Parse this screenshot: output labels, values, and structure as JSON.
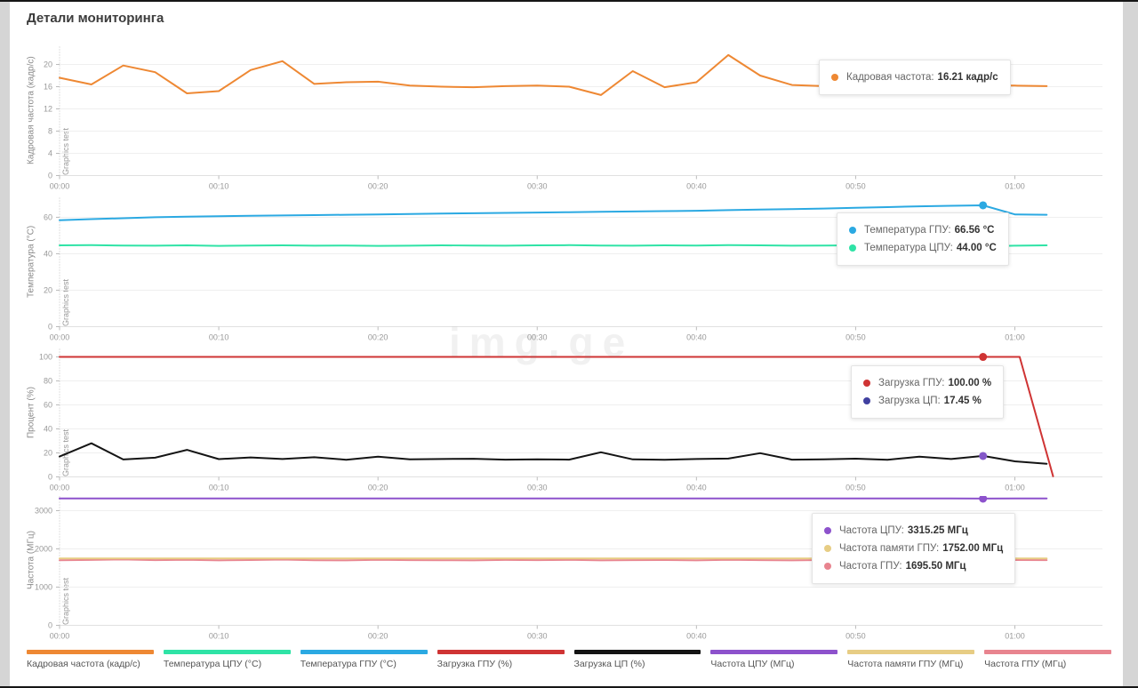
{
  "title": "Детали мониторинга",
  "session_label": "Graphics test",
  "watermark": "img.ge",
  "time_axis": {
    "labels": [
      "00:00",
      "00:10",
      "00:20",
      "00:30",
      "00:40",
      "00:50",
      "01:00"
    ],
    "minutes": [
      0,
      10,
      20,
      30,
      40,
      50,
      60
    ],
    "xmax_min": 65.5
  },
  "chart_data": [
    {
      "type": "line",
      "ylabel": "Кадровая частота (кадр/с)",
      "ylim": [
        0,
        23.2
      ],
      "yticks": [
        0,
        4,
        8,
        12,
        16,
        20
      ],
      "x": [
        0,
        2,
        4,
        6,
        8,
        10,
        12,
        14,
        16,
        18,
        20,
        22,
        24,
        26,
        28,
        30,
        32,
        34,
        36,
        38,
        40,
        42,
        44,
        46,
        48,
        50,
        52,
        54,
        56,
        58,
        60,
        62
      ],
      "series": [
        {
          "name": "Кадровая частота (кадр/с)",
          "color": "#ee8833",
          "marker": 29,
          "values": [
            17.6,
            16.4,
            19.8,
            18.6,
            14.8,
            15.2,
            19.0,
            20.6,
            16.5,
            16.8,
            16.9,
            16.2,
            16.0,
            15.9,
            16.1,
            16.2,
            16.0,
            14.5,
            18.8,
            15.9,
            16.8,
            21.7,
            18.0,
            16.3,
            16.1,
            15.5,
            15.9,
            15.4,
            16.0,
            16.21,
            16.2,
            16.1
          ]
        }
      ],
      "tooltip": {
        "rows": [
          {
            "color": "#ee8833",
            "label": "Кадровая частота:",
            "value": "16.21 кадр/с"
          }
        ]
      }
    },
    {
      "type": "line",
      "ylabel": "Температура (°C)",
      "ylim": [
        0,
        70.7
      ],
      "yticks": [
        0,
        20,
        40,
        60
      ],
      "x": [
        0,
        2,
        4,
        6,
        8,
        10,
        12,
        14,
        16,
        18,
        20,
        22,
        24,
        26,
        28,
        30,
        32,
        34,
        36,
        38,
        40,
        42,
        44,
        46,
        48,
        50,
        52,
        54,
        56,
        58,
        60,
        62
      ],
      "series": [
        {
          "name": "Температура ГПУ (°C)",
          "color": "#2ba9e2",
          "marker": 29,
          "values": [
            58.4,
            59.0,
            59.5,
            60.0,
            60.3,
            60.6,
            60.8,
            61.0,
            61.2,
            61.4,
            61.6,
            61.8,
            62.0,
            62.2,
            62.4,
            62.6,
            62.8,
            63.0,
            63.2,
            63.4,
            63.6,
            63.9,
            64.2,
            64.5,
            64.8,
            65.2,
            65.6,
            66.0,
            66.3,
            66.56,
            61.6,
            61.4
          ]
        },
        {
          "name": "Температура ЦПУ (°C)",
          "color": "#2fe3a6",
          "marker": 29,
          "values": [
            44.6,
            44.7,
            44.5,
            44.4,
            44.6,
            44.3,
            44.5,
            44.6,
            44.4,
            44.5,
            44.3,
            44.4,
            44.6,
            44.5,
            44.4,
            44.6,
            44.7,
            44.5,
            44.4,
            44.6,
            44.5,
            44.7,
            44.6,
            44.4,
            44.5,
            44.6,
            44.4,
            44.5,
            44.3,
            44.0,
            44.4,
            44.6
          ]
        }
      ],
      "tooltip": {
        "rows": [
          {
            "color": "#2ba9e2",
            "label": "Температура ГПУ:",
            "value": "66.56 °C"
          },
          {
            "color": "#2fe3a6",
            "label": "Температура ЦПУ:",
            "value": "44.00 °C"
          }
        ]
      }
    },
    {
      "type": "line",
      "ylabel": "Процент (%)",
      "ylim": [
        0,
        106.7
      ],
      "yticks": [
        0,
        20,
        40,
        60,
        80,
        100
      ],
      "x": [
        0,
        2,
        4,
        6,
        8,
        10,
        12,
        14,
        16,
        18,
        20,
        22,
        24,
        26,
        28,
        30,
        32,
        34,
        36,
        38,
        40,
        42,
        44,
        46,
        48,
        50,
        52,
        54,
        56,
        58,
        60,
        62
      ],
      "series": [
        {
          "name": "Загрузка ГПУ (%)",
          "color": "#cf3434",
          "marker": 29,
          "x": [
            0,
            2,
            4,
            6,
            8,
            10,
            12,
            14,
            16,
            18,
            20,
            22,
            24,
            26,
            28,
            30,
            32,
            34,
            36,
            38,
            40,
            42,
            44,
            46,
            48,
            50,
            52,
            54,
            56,
            58,
            60,
            60.3,
            62.4
          ],
          "values": [
            100,
            100,
            100,
            100,
            100,
            100,
            100,
            100,
            100,
            100,
            100,
            100,
            100,
            100,
            100,
            100,
            100,
            100,
            100,
            100,
            100,
            100,
            100,
            100,
            100,
            100,
            100,
            100,
            100,
            100,
            100,
            100,
            0.5
          ]
        },
        {
          "name": "Загрузка ЦП (%)",
          "color": "#141414",
          "marker": 29,
          "marker_color": "#8458c8",
          "values": [
            17.0,
            28.0,
            14.5,
            16.0,
            22.5,
            14.8,
            16.2,
            14.9,
            16.4,
            14.3,
            16.8,
            14.6,
            14.9,
            15.1,
            14.4,
            14.7,
            14.4,
            20.5,
            14.6,
            14.2,
            14.9,
            15.3,
            19.8,
            14.4,
            14.6,
            15.2,
            14.3,
            16.8,
            14.9,
            17.45,
            13.0,
            11.0
          ]
        }
      ],
      "tooltip": {
        "rows": [
          {
            "color": "#cf3434",
            "label": "Загрузка ГПУ:",
            "value": "100.00 %"
          },
          {
            "color": "#4040a0",
            "label": "Загрузка ЦП:",
            "value": "17.45 %"
          }
        ]
      }
    },
    {
      "type": "line",
      "ylabel": "Частота (МГц)",
      "ylim": [
        0,
        3372
      ],
      "yticks": [
        0,
        1000,
        2000,
        3000
      ],
      "x": [
        0,
        2,
        4,
        6,
        8,
        10,
        12,
        14,
        16,
        18,
        20,
        22,
        24,
        26,
        28,
        30,
        32,
        34,
        36,
        38,
        40,
        42,
        44,
        46,
        48,
        50,
        52,
        54,
        56,
        58,
        60,
        62
      ],
      "series": [
        {
          "name": "Частота ЦПУ (МГц)",
          "color": "#8d52cc",
          "marker": 29,
          "values": [
            3320,
            3318,
            3321,
            3319,
            3320,
            3318,
            3321,
            3320,
            3319,
            3321,
            3318,
            3320,
            3319,
            3321,
            3320,
            3318,
            3320,
            3321,
            3319,
            3320,
            3318,
            3321,
            3320,
            3319,
            3321,
            3320,
            3318,
            3320,
            3319,
            3315.25,
            3319,
            3321
          ]
        },
        {
          "name": "Частота ГПУ (МГц)",
          "color": "#e8848f",
          "marker": null,
          "values": [
            1702,
            1712,
            1724,
            1706,
            1716,
            1700,
            1710,
            1720,
            1705,
            1700,
            1714,
            1708,
            1704,
            1700,
            1712,
            1706,
            1714,
            1700,
            1706,
            1710,
            1700,
            1714,
            1706,
            1700,
            1710,
            1704,
            1700,
            1696,
            1700,
            1695.5,
            1710,
            1706
          ]
        },
        {
          "name": "Частота памяти ГПУ (МГц)",
          "color": "#e7cd84",
          "marker": 29,
          "values": [
            1752,
            1752,
            1752,
            1752,
            1752,
            1752,
            1752,
            1752,
            1752,
            1752,
            1752,
            1752,
            1752,
            1752,
            1752,
            1752,
            1752,
            1752,
            1752,
            1752,
            1752,
            1752,
            1752,
            1752,
            1752,
            1752,
            1752,
            1752,
            1752,
            1752,
            1752,
            1752
          ]
        }
      ],
      "tooltip": {
        "rows": [
          {
            "color": "#8d52cc",
            "label": "Частота ЦПУ:",
            "value": "3315.25 МГц"
          },
          {
            "color": "#e7cd84",
            "label": "Частота памяти ГПУ:",
            "value": "1752.00 МГц"
          },
          {
            "color": "#e8848f",
            "label": "Частота ГПУ:",
            "value": "1695.50 МГц"
          }
        ]
      }
    }
  ],
  "legend": [
    {
      "label": "Кадровая частота (кадр/с)",
      "color": "#ee8833"
    },
    {
      "label": "Температура ЦПУ (°C)",
      "color": "#2fe3a6"
    },
    {
      "label": "Температура ГПУ (°C)",
      "color": "#2ba9e2"
    },
    {
      "label": "Загрузка ГПУ (%)",
      "color": "#cf3434"
    },
    {
      "label": "Загрузка ЦП (%)",
      "color": "#141414"
    },
    {
      "label": "Частота ЦПУ (МГц)",
      "color": "#8d52cc"
    },
    {
      "label": "Частота памяти ГПУ (МГц)",
      "color": "#e7cd84"
    },
    {
      "label": "Частота ГПУ (МГц)",
      "color": "#e8848f"
    }
  ]
}
